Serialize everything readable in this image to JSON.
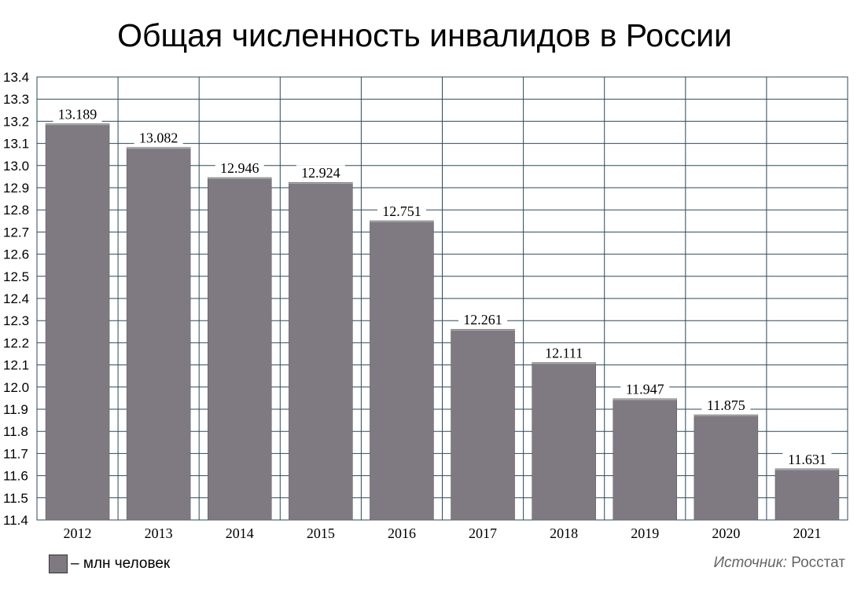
{
  "chart_data": {
    "type": "bar",
    "title": "Общая численность инвалидов в России",
    "categories": [
      "2012",
      "2013",
      "2014",
      "2015",
      "2016",
      "2017",
      "2018",
      "2019",
      "2020",
      "2021"
    ],
    "values": [
      13.189,
      13.082,
      12.946,
      12.924,
      12.751,
      12.261,
      12.111,
      11.947,
      11.875,
      11.631
    ],
    "value_labels": [
      "13.189",
      "13.082",
      "12.946",
      "12.924",
      "12.751",
      "12.261",
      "12.111",
      "11.947",
      "11.875",
      "11.631"
    ],
    "ylim": [
      11.4,
      13.4
    ],
    "yticks": [
      "11.4",
      "11.5",
      "11.6",
      "11.7",
      "11.8",
      "11.9",
      "12.0",
      "12.1",
      "12.2",
      "12.3",
      "12.4",
      "12.5",
      "12.6",
      "12.7",
      "12.8",
      "12.9",
      "13.0",
      "13.1",
      "13.2",
      "13.3",
      "13.4"
    ],
    "grid": true,
    "bar_color": "#7f7a82",
    "grid_color": "#2e4a5a",
    "legend": {
      "label": "– млн человек",
      "position": "bottom-left"
    }
  },
  "source": {
    "label": "Источник:",
    "value": "Росстат"
  }
}
